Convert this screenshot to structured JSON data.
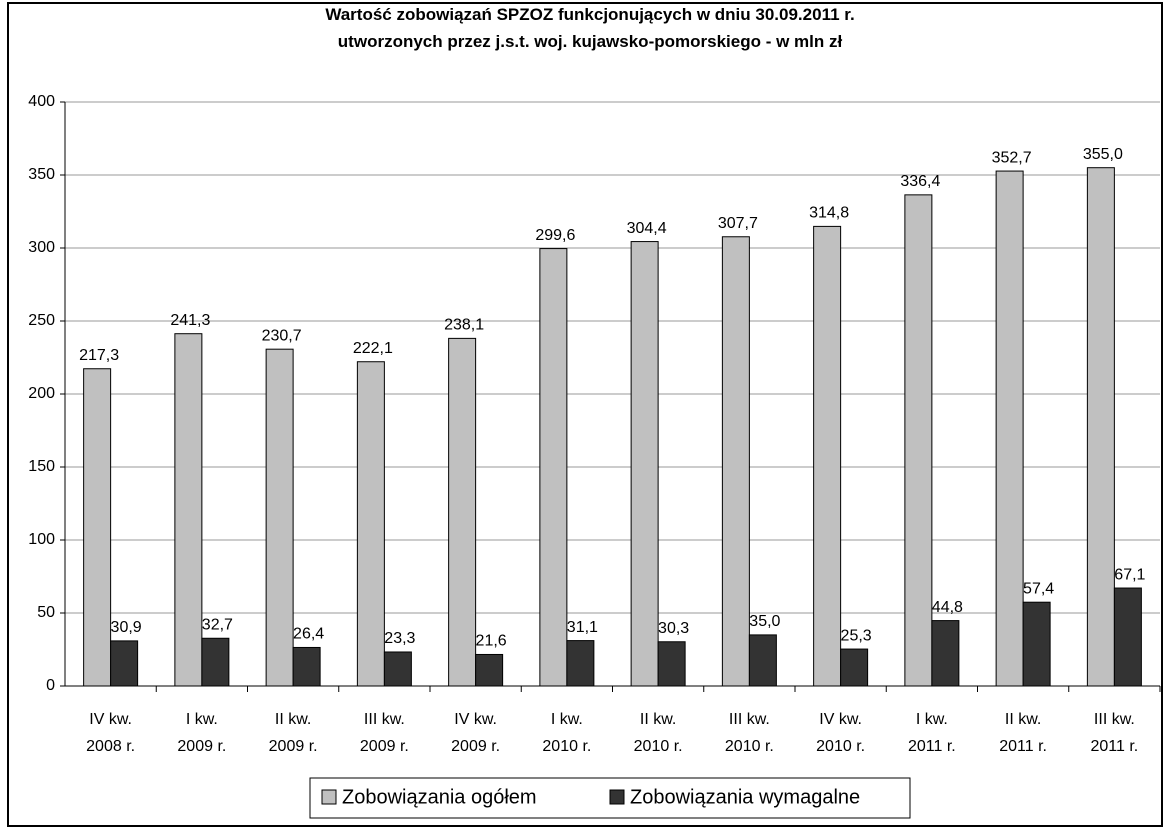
{
  "chart_data": {
    "type": "bar",
    "title": "Wartość zobowiązań SPZOZ funkcjonujących w dniu 30.09.2011 r.\nutworzonych przez j.s.t.  woj. kujawsko-pomorskiego - w mln zł",
    "categories": [
      "IV kw.\n2008 r.",
      "I kw.\n2009 r.",
      "II kw.\n2009 r.",
      "III kw.\n2009 r.",
      "IV kw.\n2009 r.",
      "I kw.\n2010 r.",
      "II kw.\n2010 r.",
      "III kw.\n2010 r.",
      "IV kw.\n2010 r.",
      "I kw.\n2011 r.",
      "II kw.\n2011 r.",
      "III kw.\n2011 r."
    ],
    "series": [
      {
        "name": "Zobowiązania ogółem",
        "color": "#c0c0c0",
        "values": [
          217.3,
          241.3,
          230.7,
          222.1,
          238.1,
          299.6,
          304.4,
          307.7,
          314.8,
          336.4,
          352.7,
          355.0
        ],
        "value_labels": [
          "217,3",
          "241,3",
          "230,7",
          "222,1",
          "238,1",
          "299,6",
          "304,4",
          "307,7",
          "314,8",
          "336,4",
          "352,7",
          "355,0"
        ]
      },
      {
        "name": "Zobowiązania wymagalne",
        "color": "#333333",
        "values": [
          30.9,
          32.7,
          26.4,
          23.3,
          21.6,
          31.1,
          30.3,
          35.0,
          25.3,
          44.8,
          57.4,
          67.1
        ],
        "value_labels": [
          "30,9",
          "32,7",
          "26,4",
          "23,3",
          "21,6",
          "31,1",
          "30,3",
          "35,0",
          "25,3",
          "44,8",
          "57,4",
          "67,1"
        ]
      }
    ],
    "ylim": [
      0,
      400
    ],
    "yticks": [
      0,
      50,
      100,
      150,
      200,
      250,
      300,
      350,
      400
    ],
    "grid": true,
    "legend": "bottom"
  }
}
